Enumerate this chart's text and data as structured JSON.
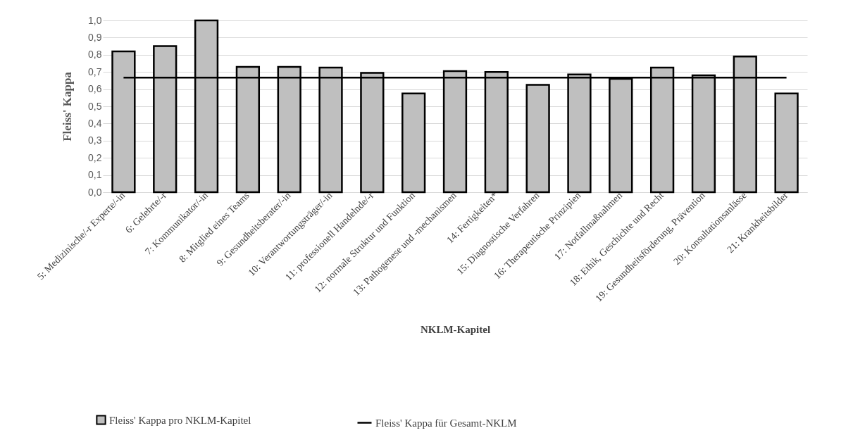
{
  "chart_data": {
    "type": "bar",
    "xlabel": "NKLM-Kapitel",
    "ylabel": "Fleiss' Kappa",
    "categories": [
      "5: Medizinische/-r Experte/-in",
      "6: Gelehrte/-r",
      "7: Kommunikator/-in",
      "8: Mitglied eines Teams",
      "9: Gesundheitsberater/-in",
      "10: Verantwortungsträger/-in",
      "11: professionell Handelnde/-r",
      "12: normale Struktur und Funktion",
      "13: Pathogenese und -mechanismen",
      "14: Fertigkeiten*",
      "15: Diagnostische Verfahren",
      "16: Therapeutische Prinzipien",
      "17: Notfallmaßnahmen",
      "18: Ethik, Geschichte und Recht",
      "19: Gesundheitsförderung, Prävention",
      "20: Konsultationsanlässe",
      "21: Krankheitsbilder"
    ],
    "series": [
      {
        "name": "Fleiss' Kappa pro NKLM-Kapitel",
        "color": "#bfbfbf",
        "values": [
          0.82,
          0.85,
          1.0,
          0.73,
          0.73,
          0.725,
          0.695,
          0.575,
          0.705,
          0.7,
          0.625,
          0.685,
          0.66,
          0.725,
          0.68,
          0.79,
          0.575
        ]
      },
      {
        "name": "Fleiss' Kappa für Gesamt-NKLM",
        "type": "line",
        "color": "#000000",
        "values": [
          0.667,
          0.667,
          0.667,
          0.667,
          0.667,
          0.667,
          0.667,
          0.667,
          0.667,
          0.667,
          0.667,
          0.667,
          0.667,
          0.667,
          0.667,
          0.667,
          0.667
        ]
      }
    ],
    "ylim": [
      0,
      1.0
    ],
    "yticks": [
      {
        "value": 0,
        "label": "0,0"
      },
      {
        "value": 0.1,
        "label": "0,1"
      },
      {
        "value": 0.2,
        "label": "0,2"
      },
      {
        "value": 0.3,
        "label": "0,3"
      },
      {
        "value": 0.4,
        "label": "0,4"
      },
      {
        "value": 0.5,
        "label": "0,5"
      },
      {
        "value": 0.6,
        "label": "0,6"
      },
      {
        "value": 0.7,
        "label": "0,7"
      },
      {
        "value": 0.8,
        "label": "0,8"
      },
      {
        "value": 0.9,
        "label": "0,9"
      },
      {
        "value": 1.0,
        "label": "1,0"
      }
    ],
    "grid": "y",
    "legend": "bottom"
  }
}
